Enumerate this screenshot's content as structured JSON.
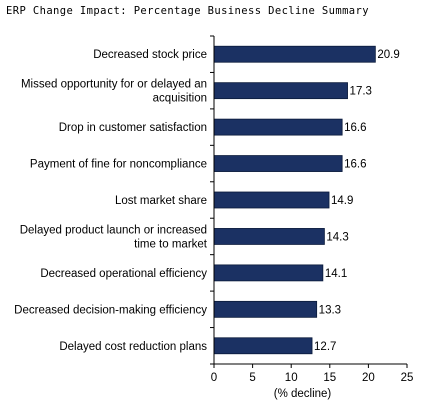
{
  "title": "ERP Change Impact: Percentage Business Decline Summary",
  "colors": {
    "bar": "#1b3163",
    "bar_stroke": "#0a1a3a",
    "axis": "#000000"
  },
  "chart_data": {
    "type": "bar",
    "orientation": "horizontal",
    "title": "ERP Change Impact: Percentage Business Decline Summary",
    "xlabel": "(% decline)",
    "ylabel": "",
    "xlim": [
      0,
      25
    ],
    "xticks": [
      0,
      5,
      10,
      15,
      20,
      25
    ],
    "grid": false,
    "categories": [
      [
        "Decreased stock price"
      ],
      [
        "Missed opportunity for or delayed an",
        "acquisition"
      ],
      [
        "Drop in customer satisfaction"
      ],
      [
        "Payment of fine for noncompliance"
      ],
      [
        "Lost market share"
      ],
      [
        "Delayed product launch or increased",
        "time to market"
      ],
      [
        "Decreased operational efficiency"
      ],
      [
        "Decreased decision-making efficiency"
      ],
      [
        "Delayed cost reduction plans"
      ]
    ],
    "values": [
      20.9,
      17.3,
      16.6,
      16.6,
      14.9,
      14.3,
      14.1,
      13.3,
      12.7
    ]
  }
}
